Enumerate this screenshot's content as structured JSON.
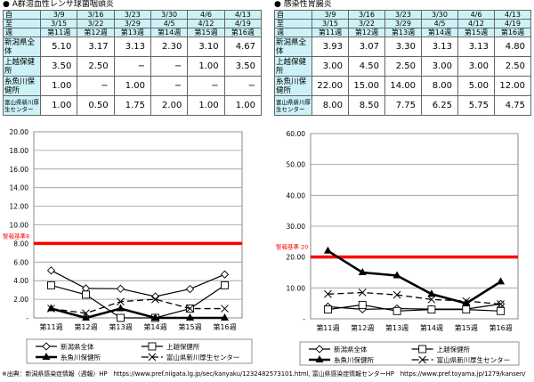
{
  "tables": [
    {
      "title": "● A群溶血性レンサ球菌咽頭炎",
      "row_labels": [
        "自",
        "至",
        "週"
      ],
      "from": [
        "3/9",
        "3/16",
        "3/23",
        "3/30",
        "4/6",
        "4/13"
      ],
      "to": [
        "3/15",
        "3/22",
        "3/29",
        "4/5",
        "4/12",
        "4/19"
      ],
      "weeks": [
        "第11週",
        "第12週",
        "第13週",
        "第14週",
        "第15週",
        "第16週"
      ],
      "rows": [
        {
          "label": "新潟県全体",
          "values": [
            "5.10",
            "3.17",
            "3.13",
            "2.30",
            "3.10",
            "4.67"
          ]
        },
        {
          "label": "上越保健所",
          "values": [
            "3.50",
            "2.50",
            "−",
            "−",
            "1.00",
            "3.50"
          ]
        },
        {
          "label": "糸魚川保健所",
          "values": [
            "1.00",
            "−",
            "1.00",
            "−",
            "−",
            "−"
          ]
        },
        {
          "label": "富山県新川厚生センター",
          "values": [
            "1.00",
            "0.50",
            "1.75",
            "2.00",
            "1.00",
            "1.00"
          ]
        }
      ]
    },
    {
      "title": "● 感染性胃腸炎",
      "row_labels": [
        "自",
        "至",
        "週"
      ],
      "from": [
        "3/9",
        "3/16",
        "3/23",
        "3/30",
        "4/6",
        "4/13"
      ],
      "to": [
        "3/15",
        "3/22",
        "3/29",
        "4/5",
        "4/12",
        "4/19"
      ],
      "weeks": [
        "第11週",
        "第12週",
        "第13週",
        "第14週",
        "第15週",
        "第16週"
      ],
      "rows": [
        {
          "label": "新潟県全体",
          "values": [
            "3.93",
            "3.07",
            "3.30",
            "3.13",
            "3.13",
            "4.80"
          ]
        },
        {
          "label": "上越保健所",
          "values": [
            "3.00",
            "4.50",
            "2.50",
            "3.00",
            "3.00",
            "2.50"
          ]
        },
        {
          "label": "糸魚川保健所",
          "values": [
            "22.00",
            "15.00",
            "14.00",
            "8.00",
            "5.00",
            "12.00"
          ]
        },
        {
          "label": "富山県新川厚生センター",
          "values": [
            "8.00",
            "8.50",
            "7.75",
            "6.25",
            "5.75",
            "4.75"
          ]
        }
      ]
    }
  ],
  "chart_data": [
    {
      "type": "line",
      "categories": [
        "第11週",
        "第12週",
        "第13週",
        "第14週",
        "第15週",
        "第16週"
      ],
      "ylim": [
        0,
        20
      ],
      "yticks": [
        "-",
        "2.00",
        "4.00",
        "6.00",
        "8.00",
        "10.00",
        "12.00",
        "14.00",
        "16.00",
        "18.00",
        "20.00"
      ],
      "threshold": {
        "value": 8,
        "label": "警報基準8",
        "color": "#ff0000"
      },
      "series": [
        {
          "name": "新潟県全体",
          "values": [
            5.1,
            3.17,
            3.13,
            2.3,
            3.1,
            4.67
          ],
          "marker": "diamond"
        },
        {
          "name": "上越保健所",
          "values": [
            3.5,
            2.5,
            0,
            0,
            1.0,
            3.5
          ],
          "marker": "square"
        },
        {
          "name": "糸魚川保健所",
          "values": [
            1.0,
            0,
            1.0,
            0,
            0,
            0
          ],
          "marker": "triangle"
        },
        {
          "name": "富山県新川厚生センター",
          "values": [
            1.0,
            0.5,
            1.75,
            2.0,
            1.0,
            1.0
          ],
          "marker": "x"
        }
      ],
      "legend": "bottom"
    },
    {
      "type": "line",
      "categories": [
        "第11週",
        "第12週",
        "第13週",
        "第14週",
        "第15週",
        "第16週"
      ],
      "ylim": [
        0,
        60
      ],
      "yticks": [
        "-",
        "10.00",
        "20.00",
        "30.00",
        "40.00",
        "50.00",
        "60.00"
      ],
      "threshold": {
        "value": 20,
        "label": "警報基準 20",
        "color": "#ff0000"
      },
      "series": [
        {
          "name": "新潟県全体",
          "values": [
            3.93,
            3.07,
            3.3,
            3.13,
            3.13,
            4.8
          ],
          "marker": "diamond"
        },
        {
          "name": "上越保健所",
          "values": [
            3.0,
            4.5,
            2.5,
            3.0,
            3.0,
            2.5
          ],
          "marker": "square"
        },
        {
          "name": "糸魚川保健所",
          "values": [
            22.0,
            15.0,
            14.0,
            8.0,
            5.0,
            12.0
          ],
          "marker": "triangle"
        },
        {
          "name": "富山県新川厚生センター",
          "values": [
            8.0,
            8.5,
            7.75,
            6.25,
            5.75,
            4.75
          ],
          "marker": "x"
        }
      ],
      "legend": "bottom"
    }
  ],
  "footer": "※出典：新潟県感染症情報（週報）HP　https://www.pref.niigata.lg.jp/sec/kanyaku/1232482573101.html, 富山県感染症情報センターHP　https://www.pref.toyama.jp/1279/kansen/"
}
